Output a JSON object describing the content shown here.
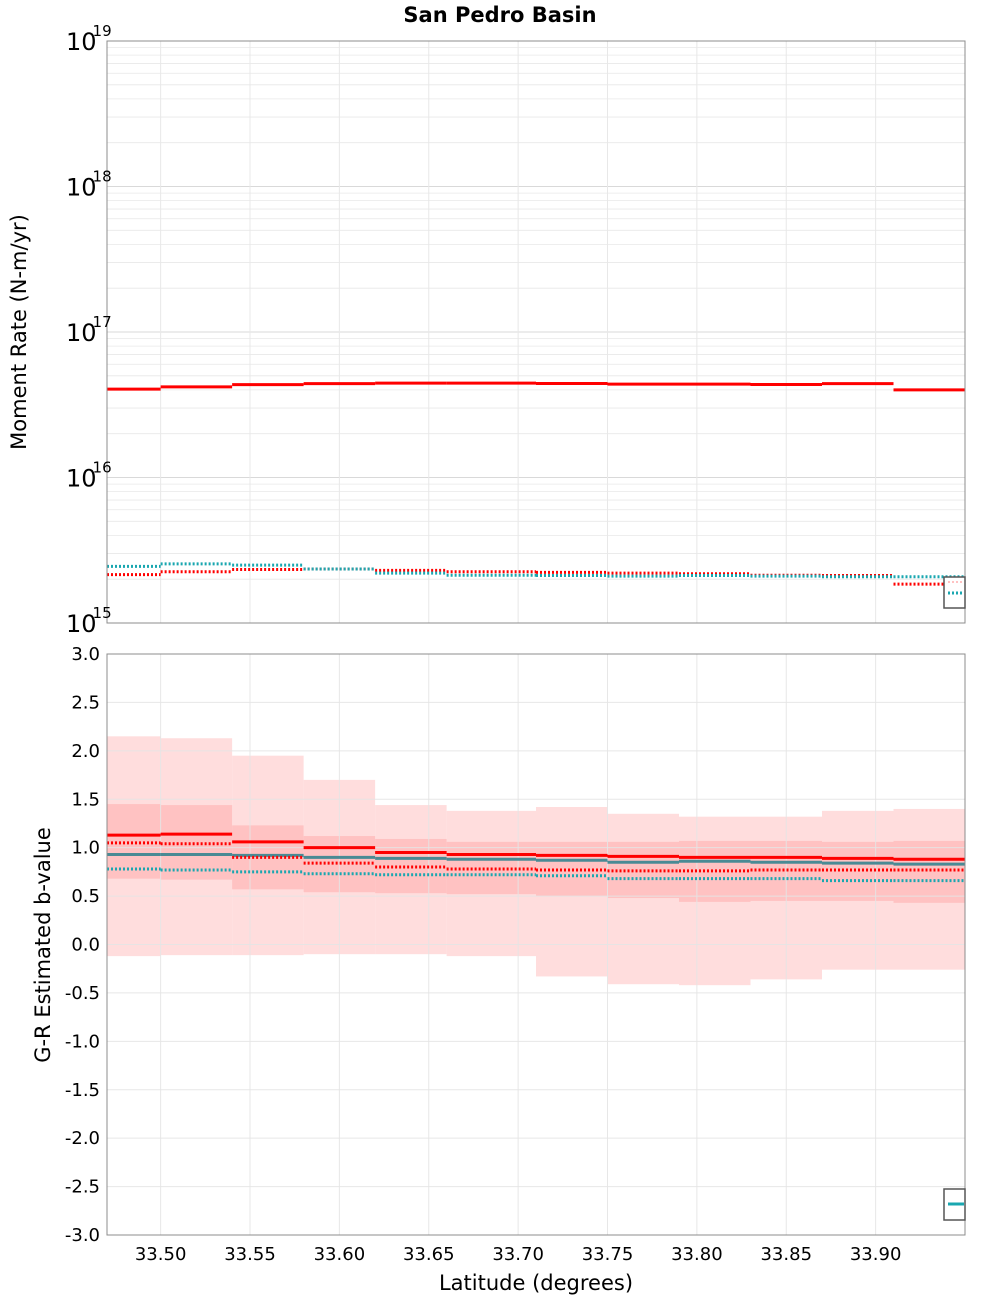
{
  "chart_data": [
    {
      "type": "line",
      "title": "San Pedro Basin",
      "xlabel": "",
      "ylabel": "Moment Rate (N-m/yr)",
      "yscale": "log",
      "ylim": [
        1000000000000000.0,
        1e+19
      ],
      "xlim": [
        33.47,
        33.95
      ],
      "grid": true,
      "ytick_labels": [
        {
          "base": "10",
          "exp": "15"
        },
        {
          "base": "10",
          "exp": "16"
        },
        {
          "base": "10",
          "exp": "17"
        },
        {
          "base": "10",
          "exp": "18"
        },
        {
          "base": "10",
          "exp": "19"
        }
      ],
      "bin_edges": [
        33.47,
        33.5,
        33.54,
        33.58,
        33.62,
        33.66,
        33.71,
        33.75,
        33.79,
        33.83,
        33.87,
        33.91,
        33.95
      ],
      "series": [
        {
          "name": "moment-rate-red-solid",
          "color": "#ff0000",
          "style": "solid",
          "values": [
            4.05e+16,
            4.2e+16,
            4.35e+16,
            4.42e+16,
            4.45e+16,
            4.45e+16,
            4.43e+16,
            4.38e+16,
            4.38e+16,
            4.36e+16,
            4.42e+16,
            4e+16
          ]
        },
        {
          "name": "moment-rate-red-dotted",
          "color": "#ff0000",
          "style": "dotted",
          "values": [
            2150000000000000.0,
            2250000000000000.0,
            2330000000000000.0,
            2350000000000000.0,
            2300000000000000.0,
            2250000000000000.0,
            2230000000000000.0,
            2200000000000000.0,
            2180000000000000.0,
            2130000000000000.0,
            2120000000000000.0,
            1850000000000000.0
          ]
        },
        {
          "name": "moment-rate-teal-dotted",
          "color": "#1aa7b0",
          "style": "dotted",
          "values": [
            2450000000000000.0,
            2550000000000000.0,
            2500000000000000.0,
            2350000000000000.0,
            2200000000000000.0,
            2130000000000000.0,
            2120000000000000.0,
            2100000000000000.0,
            2120000000000000.0,
            2100000000000000.0,
            2080000000000000.0,
            2080000000000000.0
          ]
        }
      ],
      "legend": "bottom-right"
    },
    {
      "type": "line",
      "title": "",
      "xlabel": "Latitude (degrees)",
      "ylabel": "G-R Estimated b-value",
      "ylim": [
        -3.0,
        3.0
      ],
      "xlim": [
        33.47,
        33.95
      ],
      "grid": true,
      "yticks": [
        "-3.0",
        "-2.5",
        "-2.0",
        "-1.5",
        "-1.0",
        "-0.5",
        "0.0",
        "0.5",
        "1.0",
        "1.5",
        "2.0",
        "2.5",
        "3.0"
      ],
      "xticks": [
        "33.50",
        "33.55",
        "33.60",
        "33.65",
        "33.70",
        "33.75",
        "33.80",
        "33.85",
        "33.90"
      ],
      "bin_edges": [
        33.47,
        33.5,
        33.54,
        33.58,
        33.62,
        33.66,
        33.71,
        33.75,
        33.79,
        33.83,
        33.87,
        33.91,
        33.95
      ],
      "outer_band": {
        "color": "#ffdddd",
        "upper": [
          2.15,
          2.13,
          1.95,
          1.7,
          1.44,
          1.38,
          1.42,
          1.35,
          1.32,
          1.32,
          1.38,
          1.4
        ],
        "lower": [
          -0.12,
          -0.11,
          -0.11,
          -0.1,
          -0.1,
          -0.12,
          -0.33,
          -0.41,
          -0.42,
          -0.36,
          -0.26,
          -0.26
        ]
      },
      "inner_band": {
        "color": "#ffc2c2",
        "upper": [
          1.45,
          1.44,
          1.23,
          1.12,
          1.09,
          1.06,
          1.06,
          1.06,
          1.07,
          1.07,
          1.06,
          1.07
        ],
        "lower": [
          0.68,
          0.67,
          0.57,
          0.54,
          0.53,
          0.52,
          0.5,
          0.48,
          0.44,
          0.45,
          0.45,
          0.43
        ]
      },
      "series": [
        {
          "name": "b-value-red-solid",
          "color": "#ff0000",
          "style": "solid",
          "values": [
            1.13,
            1.14,
            1.06,
            1.0,
            0.95,
            0.93,
            0.92,
            0.91,
            0.9,
            0.9,
            0.89,
            0.88
          ]
        },
        {
          "name": "b-value-steel-solid",
          "color": "#4a8a94",
          "style": "solid",
          "values": [
            0.93,
            0.93,
            0.92,
            0.9,
            0.89,
            0.88,
            0.87,
            0.85,
            0.86,
            0.85,
            0.84,
            0.83
          ]
        },
        {
          "name": "b-value-red-dotted",
          "color": "#ff0000",
          "style": "dotted",
          "values": [
            1.05,
            1.04,
            0.9,
            0.84,
            0.8,
            0.78,
            0.77,
            0.76,
            0.76,
            0.77,
            0.77,
            0.77
          ]
        },
        {
          "name": "b-value-teal-dotted",
          "color": "#1aa7b0",
          "style": "dotted",
          "values": [
            0.78,
            0.77,
            0.75,
            0.73,
            0.72,
            0.72,
            0.71,
            0.68,
            0.68,
            0.68,
            0.66,
            0.66
          ]
        }
      ],
      "legend": "bottom-right"
    }
  ]
}
